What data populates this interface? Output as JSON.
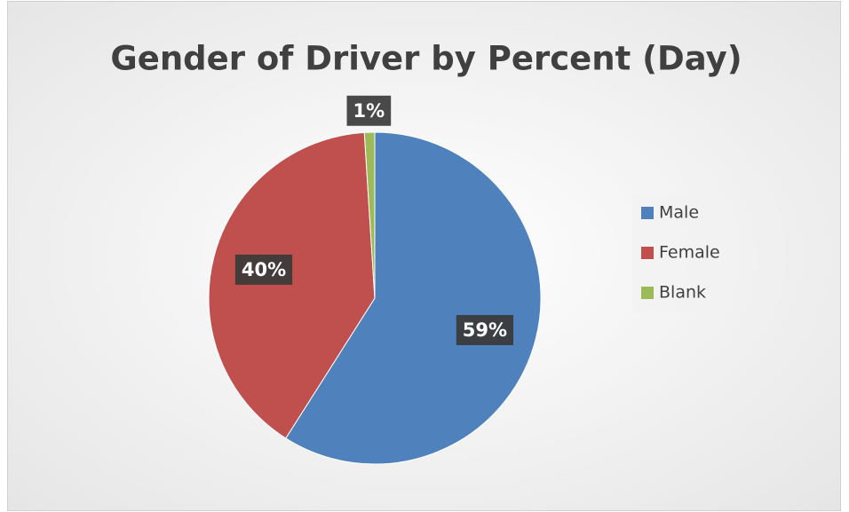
{
  "chart_data": {
    "type": "pie",
    "title": "Gender of Driver by Percent (Day)",
    "categories": [
      "Male",
      "Female",
      "Blank"
    ],
    "values": [
      59,
      40,
      1
    ],
    "value_labels": [
      "59%",
      "40%",
      "1%"
    ],
    "colors": [
      "#4f81bd",
      "#c0504d",
      "#9bbb59"
    ],
    "legend": "right"
  }
}
